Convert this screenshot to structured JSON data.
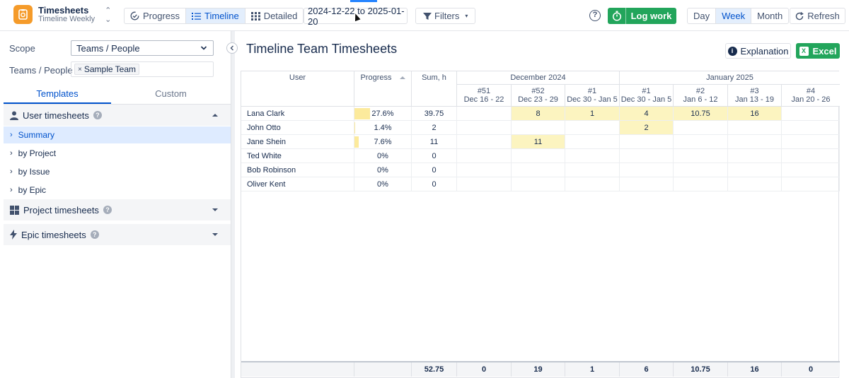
{
  "app": {
    "title": "Timesheets",
    "subtitle": "Timeline Weekly"
  },
  "views": [
    {
      "label": "Progress",
      "icon": "progress-icon",
      "active": false
    },
    {
      "label": "Timeline",
      "icon": "list-icon",
      "active": true
    },
    {
      "label": "Detailed",
      "icon": "grid-icon",
      "active": false
    }
  ],
  "date_range": "2024-12-22 to 2025-01-20",
  "filters_label": "Filters",
  "help_label": "?",
  "logwork_label": "Log work",
  "periods": [
    {
      "label": "Day",
      "active": false
    },
    {
      "label": "Week",
      "active": true
    },
    {
      "label": "Month",
      "active": false
    }
  ],
  "refresh_label": "Refresh",
  "sidebar": {
    "scope_label": "Scope",
    "scope_value": "Teams / People",
    "teams_label": "Teams / People",
    "team_tag": "Sample Team",
    "tag_remove": "×",
    "tabs": [
      {
        "label": "Templates",
        "active": true
      },
      {
        "label": "Custom",
        "active": false
      }
    ],
    "sections": {
      "user": "User timesheets",
      "project": "Project timesheets",
      "epic": "Epic timesheets"
    },
    "user_items": [
      {
        "label": "Summary",
        "active": true
      },
      {
        "label": "by Project",
        "active": false
      },
      {
        "label": "by Issue",
        "active": false
      },
      {
        "label": "by Epic",
        "active": false
      }
    ]
  },
  "main": {
    "title": "Timeline Team Timesheets",
    "explanation_label": "Explanation",
    "excel_label": "Excel"
  },
  "table": {
    "headers": {
      "user": "User",
      "progress": "Progress",
      "sum": "Sum, h"
    },
    "months": [
      {
        "label": "December 2024"
      },
      {
        "label": "January 2025"
      }
    ],
    "weeks": [
      {
        "num": "#51",
        "range": "Dec 16 - 22"
      },
      {
        "num": "#52",
        "range": "Dec 23 - 29"
      },
      {
        "num": "#1",
        "range": "Dec 30 - Jan 5"
      },
      {
        "num": "#1",
        "range": "Dec 30 - Jan 5"
      },
      {
        "num": "#2",
        "range": "Jan 6 - 12"
      },
      {
        "num": "#3",
        "range": "Jan 13 - 19"
      },
      {
        "num": "#4",
        "range": "Jan 20 - 26"
      }
    ],
    "rows": [
      {
        "user": "Lana Clark",
        "progress": "27.6%",
        "progress_frac": 0.276,
        "sum": "39.75",
        "weeks": [
          "",
          "8",
          "1",
          "4",
          "10.75",
          "16",
          ""
        ]
      },
      {
        "user": "John Otto",
        "progress": "1.4%",
        "progress_frac": 0.014,
        "sum": "2",
        "weeks": [
          "",
          "",
          "",
          "2",
          "",
          "",
          ""
        ]
      },
      {
        "user": "Jane Shein",
        "progress": "7.6%",
        "progress_frac": 0.076,
        "sum": "11",
        "weeks": [
          "",
          "11",
          "",
          "",
          "",
          "",
          ""
        ]
      },
      {
        "user": "Ted White",
        "progress": "0%",
        "progress_frac": 0,
        "sum": "0",
        "weeks": [
          "",
          "",
          "",
          "",
          "",
          "",
          ""
        ]
      },
      {
        "user": "Bob Robinson",
        "progress": "0%",
        "progress_frac": 0,
        "sum": "0",
        "weeks": [
          "",
          "",
          "",
          "",
          "",
          "",
          ""
        ]
      },
      {
        "user": "Oliver Kent",
        "progress": "0%",
        "progress_frac": 0,
        "sum": "0",
        "weeks": [
          "",
          "",
          "",
          "",
          "",
          "",
          ""
        ]
      }
    ],
    "totals": {
      "sum": "52.75",
      "weeks": [
        "0",
        "19",
        "1",
        "6",
        "10.75",
        "16",
        "0"
      ]
    }
  }
}
